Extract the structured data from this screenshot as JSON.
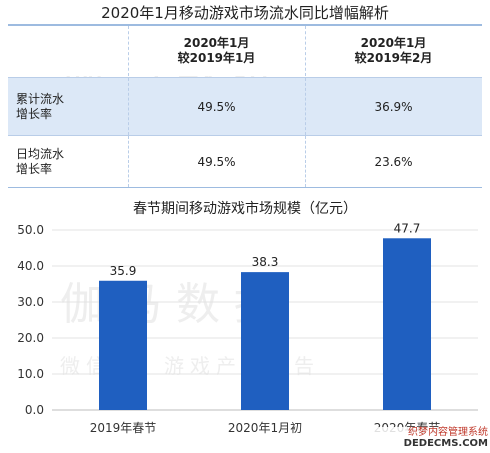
{
  "table": {
    "title": "2020年1月移动游戏市场流水同比增幅解析",
    "columns": [
      "",
      "2020年1月\n较2019年1月",
      "2020年1月\n较2019年2月"
    ],
    "rows": [
      {
        "label": "累计流水\n增长率",
        "values": [
          "49.5%",
          "36.9%"
        ]
      },
      {
        "label": "日均流水\n增长率",
        "values": [
          "49.5%",
          "23.6%"
        ]
      }
    ],
    "header_color": "#dce8f7",
    "border_color": "#9dbbe0"
  },
  "chart_data": {
    "type": "bar",
    "title": "春节期间移动游戏市场规模（亿元）",
    "categories": [
      "2019年春节",
      "2020年1月初",
      "2020年春节"
    ],
    "values": [
      35.9,
      38.3,
      47.7
    ],
    "data_labels": [
      "35.9",
      "38.3",
      "47.7"
    ],
    "ylim": [
      0,
      50
    ],
    "yticks": [
      "0.0",
      "10.0",
      "20.0",
      "30.0",
      "40.0",
      "50.0"
    ],
    "grid": true,
    "bar_color": "#1f5fc0"
  },
  "watermarks": {
    "main": "伽马数据",
    "sub": "微信号：游戏产业报告"
  },
  "corner_mark": {
    "line1": "织梦内容管理系统",
    "line2": "DEDECMS.COM"
  }
}
